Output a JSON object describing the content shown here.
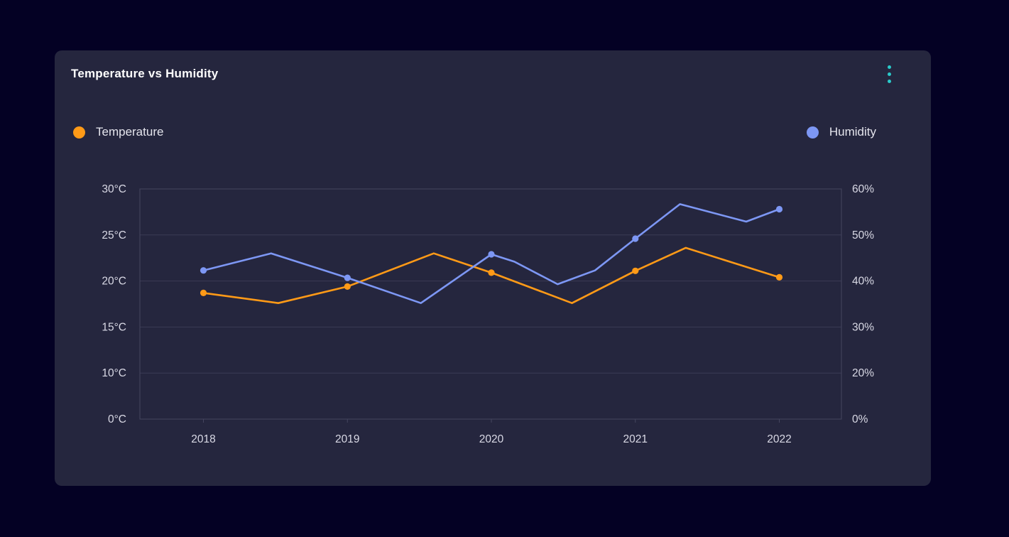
{
  "card": {
    "title": "Temperature vs Humidity",
    "menu_icon": "kebab-vertical-icon",
    "menu_color": "#2acbcb",
    "background": "#25263e"
  },
  "page_background": "#040124",
  "legend": [
    {
      "label": "Temperature",
      "color": "#ff9a17",
      "position": "left"
    },
    {
      "label": "Humidity",
      "color": "#7d97f4",
      "position": "right"
    }
  ],
  "chart_data": {
    "type": "line",
    "title": "Temperature vs Humidity",
    "grid": true,
    "x_tick_labels": [
      "2018",
      "2019",
      "2020",
      "2021",
      "2022"
    ],
    "x_range": [
      2018,
      2022
    ],
    "y_left": {
      "name": "Temperature",
      "unit": "°C",
      "tick_labels_bottom_to_top": [
        "0°C",
        "10°C",
        "15°C",
        "20°C",
        "25°C",
        "30°C"
      ],
      "tick_values_bottom_to_top": [
        0,
        10,
        15,
        20,
        25,
        30
      ]
    },
    "y_right": {
      "name": "Humidity",
      "unit": "%",
      "tick_labels_bottom_to_top": [
        "0%",
        "20%",
        "30%",
        "40%",
        "50%",
        "60%"
      ],
      "tick_values_bottom_to_top": [
        0,
        20,
        30,
        40,
        50,
        60
      ]
    },
    "series": [
      {
        "name": "Temperature",
        "axis": "left",
        "color": "#ff9a17",
        "note": "points are [x_year, value_degC, has_marker]",
        "points": [
          [
            2018.0,
            18.7,
            1
          ],
          [
            2018.52,
            17.6,
            0
          ],
          [
            2019.0,
            19.4,
            1
          ],
          [
            2019.6,
            23.0,
            0
          ],
          [
            2020.0,
            20.9,
            1
          ],
          [
            2020.56,
            17.6,
            0
          ],
          [
            2021.0,
            21.1,
            1
          ],
          [
            2021.35,
            23.6,
            0
          ],
          [
            2022.0,
            20.4,
            1
          ]
        ]
      },
      {
        "name": "Humidity",
        "axis": "right",
        "color": "#7d97f4",
        "note": "points are [x_year, value_pct, has_marker]",
        "points": [
          [
            2018.0,
            42.3,
            1
          ],
          [
            2018.47,
            46.0,
            0
          ],
          [
            2019.0,
            40.7,
            1
          ],
          [
            2019.51,
            35.2,
            0
          ],
          [
            2020.0,
            45.8,
            1
          ],
          [
            2020.16,
            44.2,
            0
          ],
          [
            2020.46,
            39.3,
            0
          ],
          [
            2020.72,
            42.3,
            0
          ],
          [
            2021.0,
            49.2,
            1
          ],
          [
            2021.31,
            56.7,
            0
          ],
          [
            2021.77,
            52.9,
            0
          ],
          [
            2022.0,
            55.6,
            1
          ]
        ]
      }
    ],
    "legend_position": "top, Temperature at left, Humidity at right",
    "markers": "dots shown only at integer-year data points"
  }
}
